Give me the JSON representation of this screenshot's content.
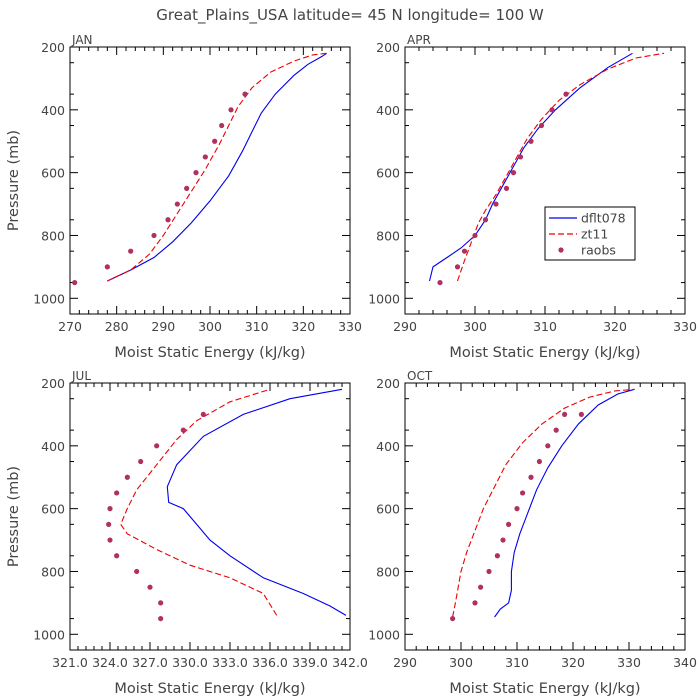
{
  "figure": {
    "title": "Great_Plains_USA   latitude= 45 N longitude= 100 W"
  },
  "legend": {
    "entries": [
      {
        "label": "dflt078",
        "color": "#0000ee",
        "style": "solid"
      },
      {
        "label": "zt11",
        "color": "#ee0000",
        "style": "dashed"
      },
      {
        "label": "raobs",
        "color": "#b03060",
        "style": "dots"
      }
    ]
  },
  "chart_data": [
    {
      "type": "line",
      "panel_label": "JAN",
      "xlabel": "Moist Static Energy (kJ/kg)",
      "ylabel": "Pressure (mb)",
      "xlim": [
        270,
        330
      ],
      "ylim": [
        1050,
        200
      ],
      "xticks": [
        "270",
        "280",
        "290",
        "300",
        "310",
        "320",
        "330"
      ],
      "yticks": [
        "200",
        "400",
        "600",
        "800",
        "1000"
      ],
      "series": [
        {
          "name": "dflt078",
          "x": [
            278,
            283,
            288,
            292,
            296,
            300,
            304,
            307,
            309,
            311,
            314,
            318,
            321,
            324,
            325
          ],
          "y": [
            945,
            910,
            870,
            820,
            760,
            690,
            610,
            530,
            470,
            410,
            350,
            290,
            255,
            230,
            220
          ]
        },
        {
          "name": "zt11",
          "x": [
            278,
            283,
            287,
            290,
            293,
            296,
            299,
            302,
            304,
            306,
            309,
            313,
            318,
            322,
            325
          ],
          "y": [
            945,
            910,
            860,
            800,
            730,
            660,
            590,
            510,
            450,
            390,
            330,
            280,
            245,
            225,
            220
          ]
        },
        {
          "name": "raobs",
          "x": [
            271,
            278,
            283,
            288,
            291,
            293,
            295,
            297,
            299,
            301,
            302.5,
            304.5,
            307.5
          ],
          "y": [
            950,
            900,
            850,
            800,
            750,
            700,
            650,
            600,
            550,
            500,
            450,
            400,
            350
          ]
        }
      ]
    },
    {
      "type": "line",
      "panel_label": "APR",
      "xlabel": "Moist Static Energy (kJ/kg)",
      "ylabel": "",
      "xlim": [
        290,
        330
      ],
      "ylim": [
        1050,
        200
      ],
      "xticks": [
        "290",
        "300",
        "310",
        "320",
        "330"
      ],
      "yticks": [
        "200",
        "400",
        "600",
        "800",
        "1000"
      ],
      "series": [
        {
          "name": "dflt078",
          "x": [
            293.5,
            294,
            296,
            298,
            300,
            301.5,
            302.5,
            304,
            305.5,
            307,
            309,
            311.5,
            315,
            319,
            322.5
          ],
          "y": [
            945,
            900,
            870,
            840,
            800,
            750,
            700,
            640,
            580,
            520,
            460,
            400,
            330,
            265,
            220
          ]
        },
        {
          "name": "zt11",
          "x": [
            297.5,
            298.5,
            299.5,
            300.5,
            301.5,
            303,
            304.5,
            306,
            307.5,
            309.5,
            312,
            315,
            319,
            323,
            327
          ],
          "y": [
            945,
            880,
            820,
            760,
            720,
            670,
            610,
            550,
            490,
            430,
            370,
            320,
            270,
            235,
            220
          ]
        },
        {
          "name": "raobs",
          "x": [
            295,
            297.5,
            298.5,
            300,
            301.5,
            303,
            304.5,
            305.5,
            306.5,
            308,
            309.5,
            311,
            313
          ],
          "y": [
            950,
            900,
            850,
            800,
            750,
            700,
            650,
            600,
            550,
            500,
            450,
            400,
            350
          ]
        }
      ]
    },
    {
      "type": "line",
      "panel_label": "JUL",
      "xlabel": "Moist Static Energy (kJ/kg)",
      "ylabel": "Pressure (mb)",
      "xlim": [
        321,
        342
      ],
      "ylim": [
        1050,
        200
      ],
      "xticks": [
        "321.0",
        "324.0",
        "327.0",
        "330.0",
        "333.0",
        "336.0",
        "339.0",
        "342.0"
      ],
      "yticks": [
        "200",
        "400",
        "600",
        "800",
        "1000"
      ],
      "series": [
        {
          "name": "dflt078",
          "x": [
            341.7,
            340.5,
            338.5,
            335.5,
            333,
            331.5,
            330.5,
            329.5,
            328.4,
            328.3,
            329,
            331,
            334,
            337.5,
            341.4
          ],
          "y": [
            940,
            910,
            870,
            820,
            750,
            700,
            650,
            600,
            580,
            530,
            460,
            370,
            300,
            250,
            220
          ]
        },
        {
          "name": "zt11",
          "x": [
            336.5,
            335.5,
            333,
            330,
            327.5,
            325.3,
            324.8,
            325.3,
            326,
            327.5,
            329,
            330.5,
            333,
            336
          ],
          "y": [
            940,
            870,
            820,
            780,
            730,
            680,
            650,
            600,
            540,
            460,
            380,
            320,
            260,
            220
          ]
        },
        {
          "name": "raobs",
          "x": [
            327.8,
            327.8,
            327.0,
            326.0,
            324.5,
            324.0,
            323.9,
            324.0,
            324.5,
            325.3,
            326.3,
            327.5,
            329.5,
            331.0
          ],
          "y": [
            950,
            900,
            850,
            800,
            750,
            700,
            650,
            600,
            550,
            500,
            450,
            400,
            350,
            300
          ]
        }
      ]
    },
    {
      "type": "line",
      "panel_label": "OCT",
      "xlabel": "Moist Static Energy (kJ/kg)",
      "ylabel": "",
      "xlim": [
        290,
        340
      ],
      "ylim": [
        1050,
        200
      ],
      "xticks": [
        "290",
        "300",
        "310",
        "320",
        "330",
        "340"
      ],
      "yticks": [
        "200",
        "400",
        "600",
        "800",
        "1000"
      ],
      "series": [
        {
          "name": "dflt078",
          "x": [
            306,
            307,
            308.5,
            309,
            309,
            309.5,
            310.5,
            312,
            313.5,
            315.5,
            318,
            321,
            324.5,
            328,
            331
          ],
          "y": [
            945,
            920,
            900,
            860,
            800,
            740,
            680,
            610,
            540,
            470,
            400,
            330,
            270,
            235,
            220
          ]
        },
        {
          "name": "zt11",
          "x": [
            298.5,
            299,
            299.5,
            300,
            301,
            302.5,
            304,
            306,
            308,
            311,
            314.5,
            318.5,
            323,
            327.5,
            331
          ],
          "y": [
            945,
            900,
            850,
            800,
            740,
            670,
            600,
            530,
            460,
            390,
            330,
            280,
            245,
            225,
            220
          ]
        },
        {
          "name": "raobs",
          "x": [
            298.5,
            302.5,
            303.5,
            305,
            306.5,
            307.5,
            308.5,
            310,
            311,
            312.5,
            314,
            315.5,
            317,
            318.5,
            321.5
          ],
          "y": [
            950,
            900,
            850,
            800,
            750,
            700,
            650,
            600,
            550,
            500,
            450,
            400,
            350,
            300,
            300
          ]
        }
      ]
    }
  ]
}
